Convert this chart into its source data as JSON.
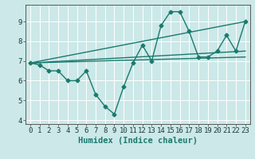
{
  "xlabel": "Humidex (Indice chaleur)",
  "bg_color": "#cce8e8",
  "grid_color": "#ffffff",
  "line_color": "#1a7a6e",
  "markersize": 2.5,
  "linewidth": 1.0,
  "xlim": [
    -0.5,
    23.5
  ],
  "ylim": [
    3.8,
    9.85
  ],
  "xticks": [
    0,
    1,
    2,
    3,
    4,
    5,
    6,
    7,
    8,
    9,
    10,
    11,
    12,
    13,
    14,
    15,
    16,
    17,
    18,
    19,
    20,
    21,
    22,
    23
  ],
  "yticks": [
    4,
    5,
    6,
    7,
    8,
    9
  ],
  "zigzag_x": [
    0,
    1,
    2,
    3,
    4,
    5,
    6,
    7,
    8,
    9,
    10,
    11,
    12,
    13,
    14,
    15,
    16,
    17,
    18,
    19,
    20,
    21,
    22,
    23
  ],
  "zigzag_y": [
    6.9,
    6.8,
    6.5,
    6.5,
    6.0,
    6.0,
    6.5,
    5.3,
    4.7,
    4.3,
    5.7,
    6.9,
    7.8,
    7.0,
    8.8,
    9.5,
    9.5,
    8.5,
    7.2,
    7.2,
    7.5,
    8.3,
    7.5,
    9.0
  ],
  "line1_x": [
    0,
    23
  ],
  "line1_y": [
    6.9,
    9.0
  ],
  "line2_x": [
    0,
    23
  ],
  "line2_y": [
    6.9,
    7.5
  ],
  "line3_x": [
    0,
    23
  ],
  "line3_y": [
    6.9,
    7.2
  ],
  "tick_fontsize": 6.5,
  "label_fontsize": 7.5
}
